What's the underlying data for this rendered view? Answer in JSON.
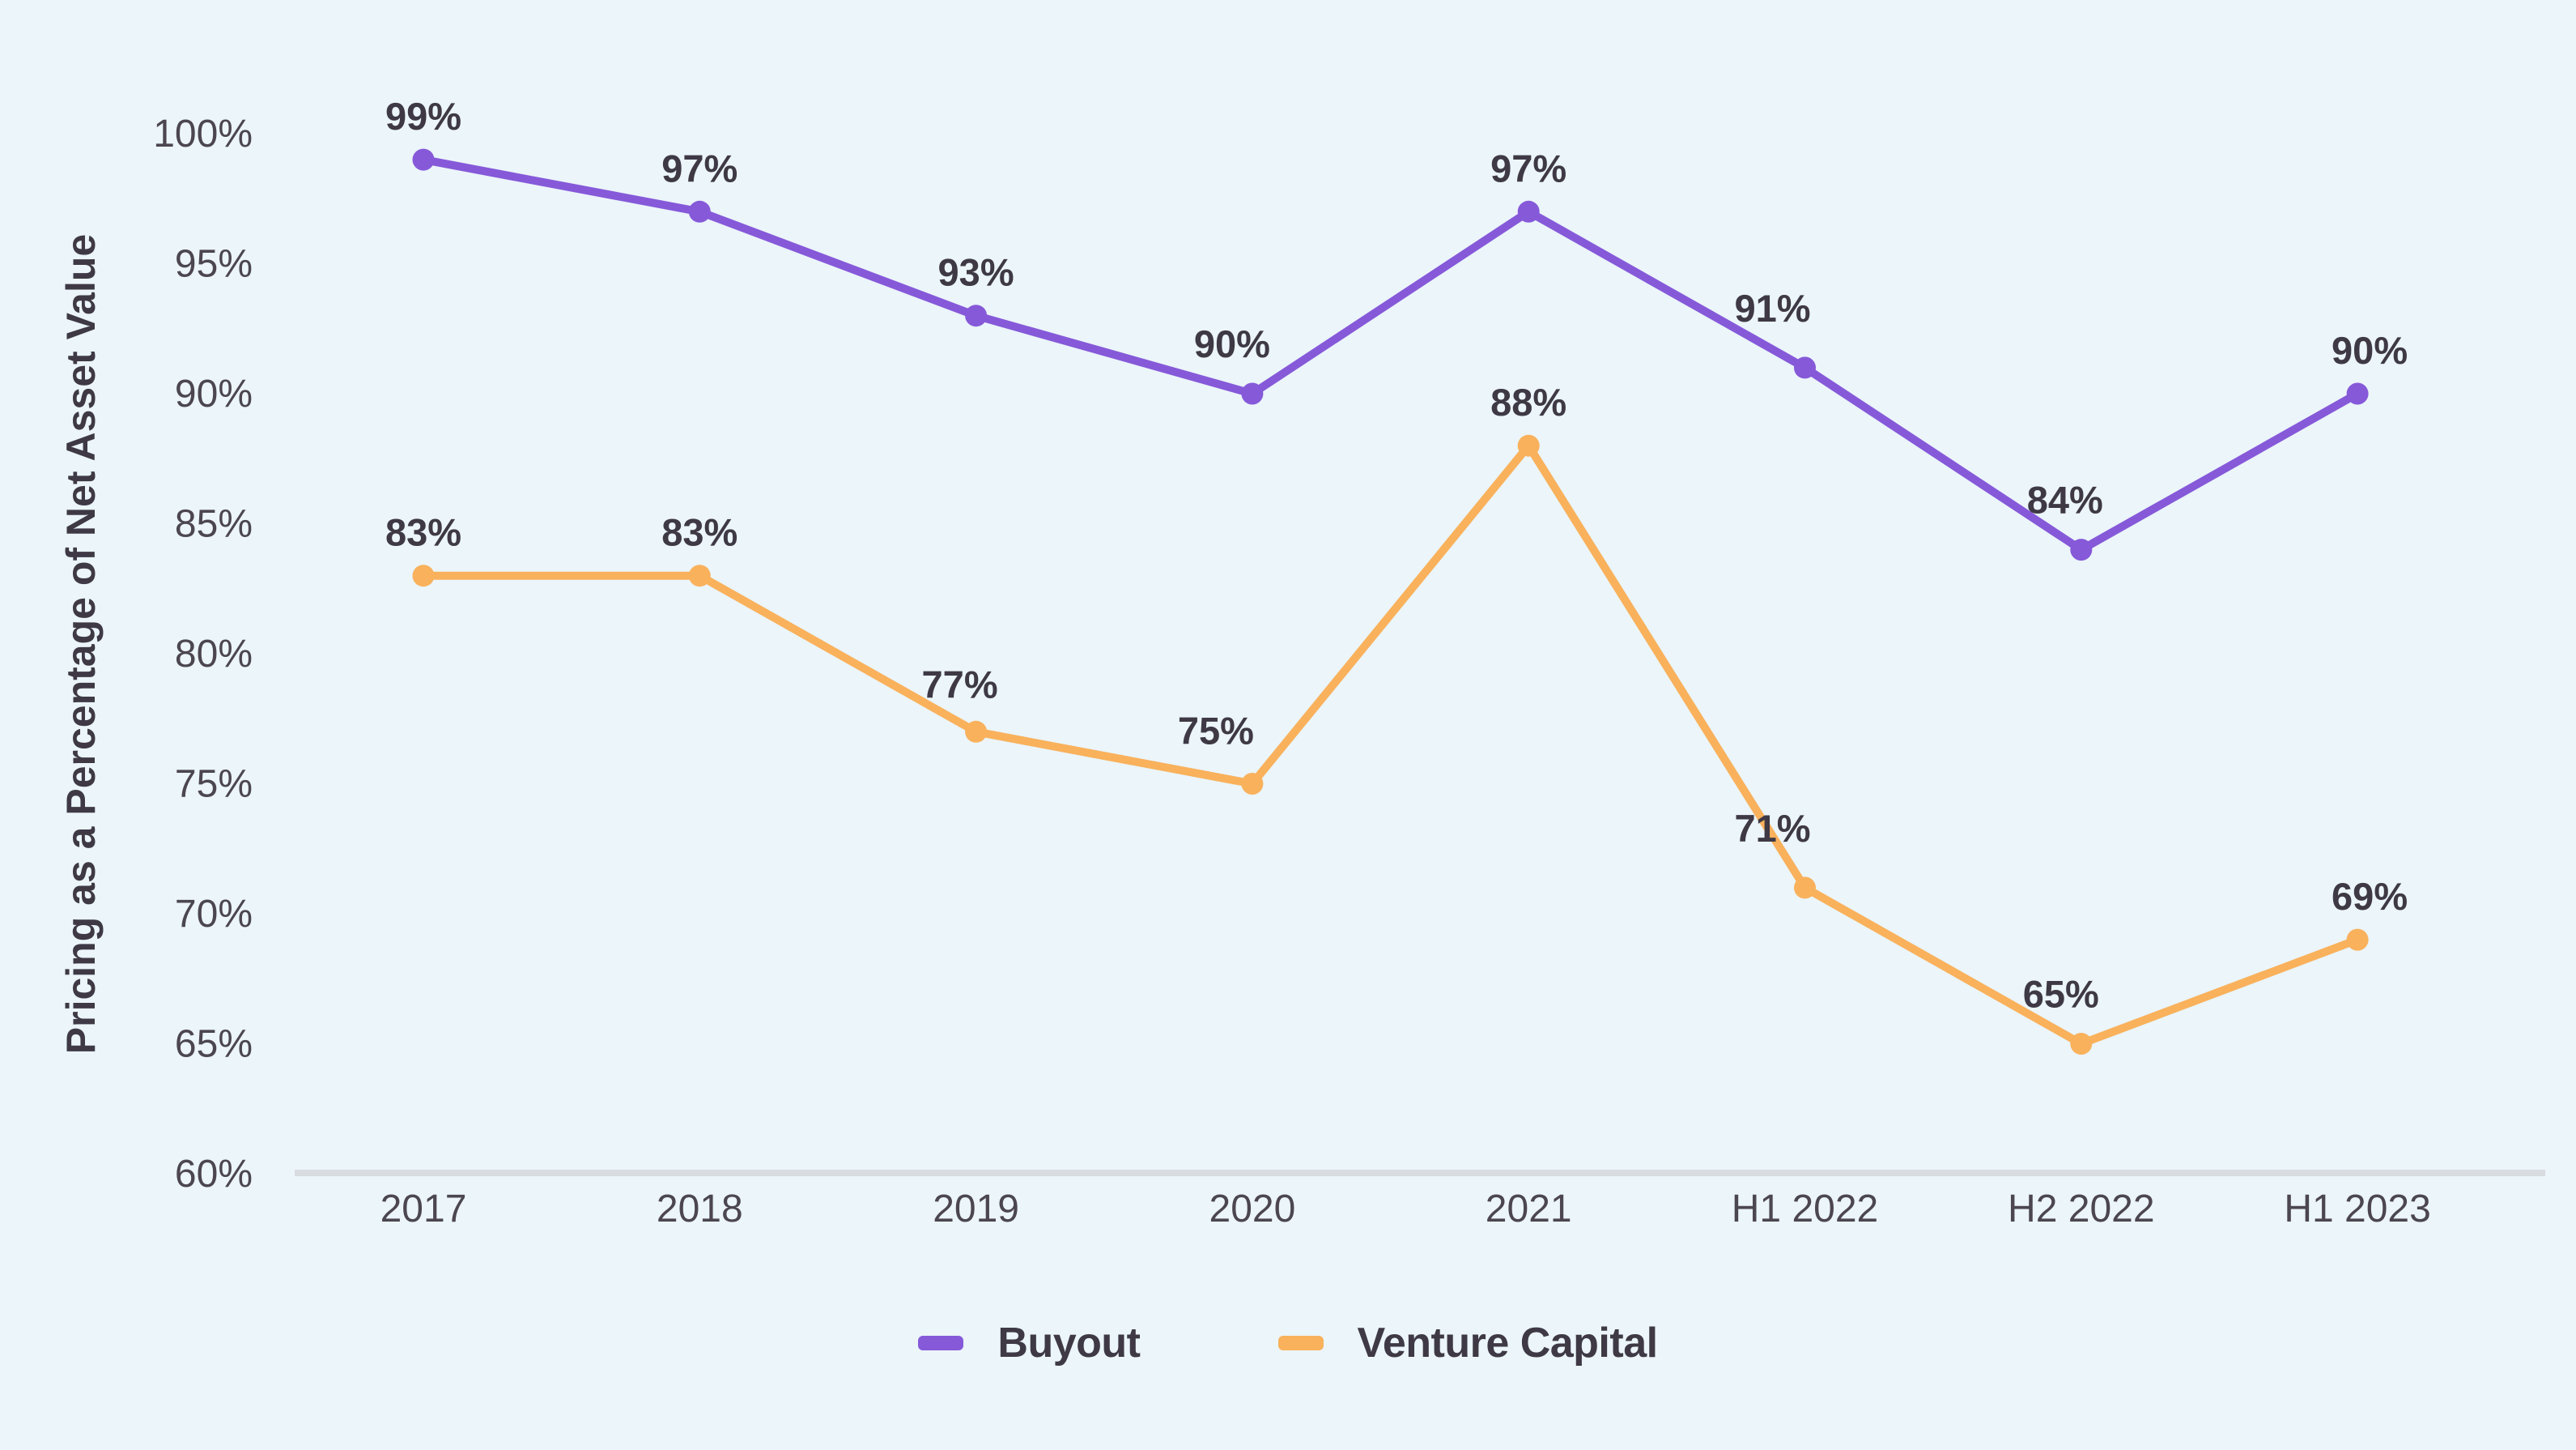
{
  "chart_data": {
    "type": "line",
    "title": "",
    "xlabel": "",
    "ylabel": "Pricing as a Percentage of Net Asset Value",
    "categories": [
      "2017",
      "2018",
      "2019",
      "2020",
      "2021",
      "H1 2022",
      "H2 2022",
      "H1 2023"
    ],
    "series": [
      {
        "name": "Buyout",
        "color": "#8659D9",
        "values": [
          99,
          97,
          93,
          90,
          97,
          91,
          84,
          90
        ],
        "labels": [
          "99%",
          "97%",
          "93%",
          "90%",
          "97%",
          "91%",
          "84%",
          "90%"
        ]
      },
      {
        "name": "Venture Capital",
        "color": "#F9B15C",
        "values": [
          83,
          83,
          77,
          75,
          88,
          71,
          65,
          69
        ],
        "labels": [
          "83%",
          "83%",
          "77%",
          "75%",
          "88%",
          "71%",
          "65%",
          "69%"
        ]
      }
    ],
    "unit": "%",
    "ylim": [
      60,
      100
    ],
    "y_ticks": [
      100,
      95,
      90,
      85,
      80,
      75,
      70,
      65,
      60
    ],
    "y_tick_labels": [
      "100%",
      "95%",
      "90%",
      "85%",
      "80%",
      "75%",
      "70%",
      "65%",
      "60%"
    ],
    "grid": false,
    "legend_position": "bottom",
    "label_offsets": [
      [
        [
          0,
          0
        ],
        [
          0,
          0
        ],
        [
          0,
          0
        ],
        [
          -25,
          -8
        ],
        [
          0,
          0
        ],
        [
          -40,
          -20
        ],
        [
          -20,
          -8
        ],
        [
          15,
          0
        ]
      ],
      [
        [
          0,
          0
        ],
        [
          0,
          0
        ],
        [
          -20,
          -5
        ],
        [
          -45,
          -12
        ],
        [
          0,
          0
        ],
        [
          -40,
          -20
        ],
        [
          -25,
          -8
        ],
        [
          15,
          0
        ]
      ]
    ]
  },
  "style": {
    "background": "#EBF5FA",
    "tick_text_color": "#4C4651",
    "label_text_color": "#3E3945",
    "axis_line_color": "#D8DBE0"
  }
}
